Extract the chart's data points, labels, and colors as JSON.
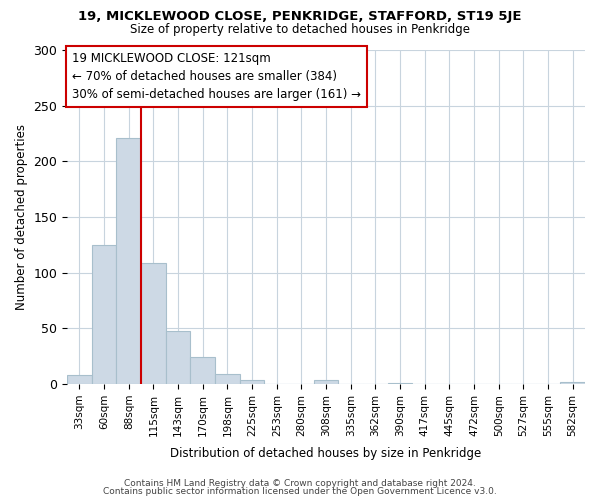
{
  "title": "19, MICKLEWOOD CLOSE, PENKRIDGE, STAFFORD, ST19 5JE",
  "subtitle": "Size of property relative to detached houses in Penkridge",
  "xlabel": "Distribution of detached houses by size in Penkridge",
  "ylabel": "Number of detached properties",
  "bin_labels": [
    "33sqm",
    "60sqm",
    "88sqm",
    "115sqm",
    "143sqm",
    "170sqm",
    "198sqm",
    "225sqm",
    "253sqm",
    "280sqm",
    "308sqm",
    "335sqm",
    "362sqm",
    "390sqm",
    "417sqm",
    "445sqm",
    "472sqm",
    "500sqm",
    "527sqm",
    "555sqm",
    "582sqm"
  ],
  "bar_heights": [
    8,
    125,
    221,
    109,
    48,
    24,
    9,
    4,
    0,
    0,
    4,
    0,
    0,
    1,
    0,
    0,
    0,
    0,
    0,
    0,
    2
  ],
  "bar_color": "#cdd9e5",
  "bar_edge_color": "#a8bfcc",
  "vline_x_index": 3,
  "vline_color": "#cc0000",
  "annotation_line1": "19 MICKLEWOOD CLOSE: 121sqm",
  "annotation_line2": "← 70% of detached houses are smaller (384)",
  "annotation_line3": "30% of semi-detached houses are larger (161) →",
  "annotation_box_color": "#ffffff",
  "annotation_box_edge": "#cc0000",
  "ylim": [
    0,
    300
  ],
  "yticks": [
    0,
    50,
    100,
    150,
    200,
    250,
    300
  ],
  "footer_line1": "Contains HM Land Registry data © Crown copyright and database right 2024.",
  "footer_line2": "Contains public sector information licensed under the Open Government Licence v3.0.",
  "bg_color": "#ffffff",
  "grid_color": "#c8d4de"
}
